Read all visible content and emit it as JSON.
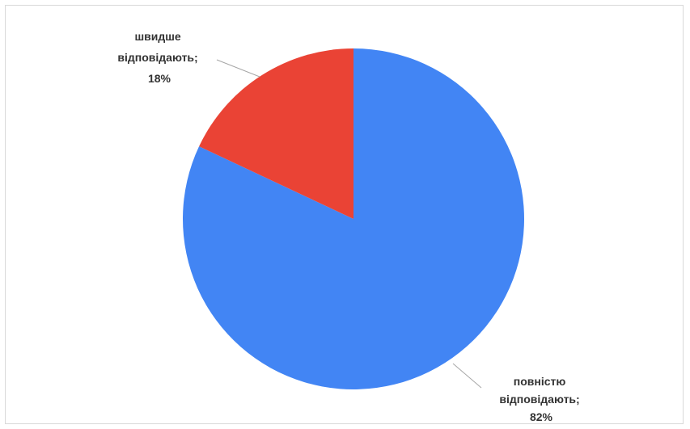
{
  "chart_data": {
    "type": "pie",
    "categories": [
      "повністю відповідають",
      "швидше відповідають"
    ],
    "values": [
      82,
      18
    ],
    "colors": [
      "#4285f4",
      "#ea4335"
    ],
    "labels": [
      {
        "lines": [
          "повністю",
          "відповідають;",
          "82%"
        ]
      },
      {
        "lines": [
          "швидше",
          "відповідають;",
          "18%"
        ]
      }
    ],
    "start_angle": "12 o'clock",
    "direction": "clockwise",
    "legend": "none"
  }
}
